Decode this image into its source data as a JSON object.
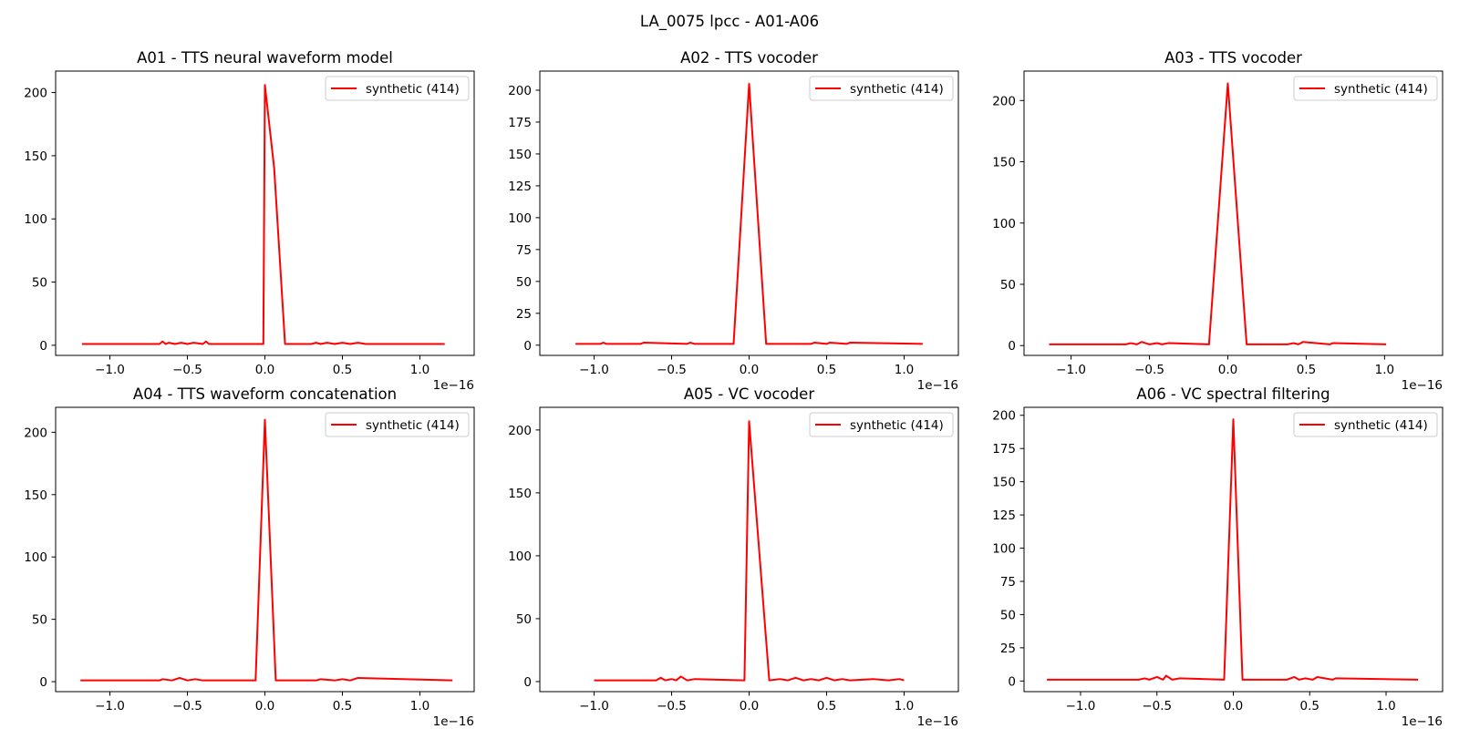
{
  "figure": {
    "title": "LA_0075 lpcc - A01-A06"
  },
  "style": {
    "series_color": "#ff0000",
    "axis_color": "#000000",
    "legend_border_color": "#cccccc"
  },
  "chart_data": [
    {
      "type": "line",
      "title": "A01 - TTS neural waveform model",
      "xlabel": "",
      "ylabel": "",
      "x_offset_label": "1e−16",
      "xlim": [
        -1.35,
        1.35
      ],
      "ylim": [
        -8,
        217
      ],
      "xticks": [
        -1.0,
        -0.5,
        0.0,
        0.5,
        1.0
      ],
      "xtick_labels": [
        "−1.0",
        "−0.5",
        "0.0",
        "0.5",
        "1.0"
      ],
      "yticks": [
        0,
        50,
        100,
        150,
        200
      ],
      "ytick_labels": [
        "0",
        "50",
        "100",
        "150",
        "200"
      ],
      "grid": false,
      "legend_position": "top-right",
      "series": [
        {
          "name": "synthetic (414)",
          "x": [
            -1.18,
            -0.68,
            -0.66,
            -0.64,
            -0.62,
            -0.58,
            -0.54,
            -0.5,
            -0.46,
            -0.4,
            -0.38,
            -0.36,
            -0.01,
            0.0,
            0.06,
            0.13,
            0.3,
            0.33,
            0.36,
            0.4,
            0.45,
            0.5,
            0.55,
            0.6,
            0.65,
            0.7,
            1.16
          ],
          "y": [
            1,
            1,
            3,
            1,
            2,
            1,
            2,
            1,
            2,
            1,
            3,
            1,
            1,
            206,
            140,
            1,
            1,
            2,
            1,
            2,
            1,
            2,
            1,
            2,
            1,
            1,
            1
          ]
        }
      ]
    },
    {
      "type": "line",
      "title": "A02 - TTS vocoder",
      "xlabel": "",
      "ylabel": "",
      "x_offset_label": "1e−16",
      "xlim": [
        -1.35,
        1.35
      ],
      "ylim": [
        -8,
        215
      ],
      "xticks": [
        -1.0,
        -0.5,
        0.0,
        0.5,
        1.0
      ],
      "xtick_labels": [
        "−1.0",
        "−0.5",
        "0.0",
        "0.5",
        "1.0"
      ],
      "yticks": [
        0,
        25,
        50,
        75,
        100,
        125,
        150,
        175,
        200
      ],
      "ytick_labels": [
        "0",
        "25",
        "50",
        "75",
        "100",
        "125",
        "150",
        "175",
        "200"
      ],
      "grid": false,
      "legend_position": "top-right",
      "series": [
        {
          "name": "synthetic (414)",
          "x": [
            -1.12,
            -0.96,
            -0.94,
            -0.92,
            -0.7,
            -0.68,
            -0.4,
            -0.38,
            -0.35,
            -0.1,
            0.0,
            0.11,
            0.4,
            0.42,
            0.5,
            0.52,
            0.63,
            0.65,
            1.12
          ],
          "y": [
            1,
            1,
            2,
            1,
            1,
            2,
            1,
            2,
            1,
            1,
            205,
            1,
            1,
            2,
            1,
            2,
            1,
            2,
            1
          ]
        }
      ]
    },
    {
      "type": "line",
      "title": "A03 - TTS vocoder",
      "xlabel": "",
      "ylabel": "",
      "x_offset_label": "1e−16",
      "xlim": [
        -1.3,
        1.37
      ],
      "ylim": [
        -8,
        224
      ],
      "xticks": [
        -1.0,
        -0.5,
        0.0,
        0.5,
        1.0
      ],
      "xtick_labels": [
        "−1.0",
        "−0.5",
        "0.0",
        "0.5",
        "1.0"
      ],
      "yticks": [
        0,
        50,
        100,
        150,
        200
      ],
      "ytick_labels": [
        "0",
        "50",
        "100",
        "150",
        "200"
      ],
      "grid": false,
      "legend_position": "top-right",
      "series": [
        {
          "name": "synthetic (414)",
          "x": [
            -1.14,
            -0.65,
            -0.62,
            -0.58,
            -0.55,
            -0.5,
            -0.45,
            -0.42,
            -0.38,
            -0.12,
            0.0,
            0.12,
            0.38,
            0.42,
            0.45,
            0.48,
            0.65,
            0.67,
            1.01
          ],
          "y": [
            1,
            1,
            2,
            1,
            3,
            1,
            2,
            1,
            2,
            1,
            214,
            1,
            1,
            2,
            1,
            3,
            1,
            2,
            1
          ]
        }
      ]
    },
    {
      "type": "line",
      "title": "A04 - TTS waveform concatenation",
      "xlabel": "",
      "ylabel": "",
      "x_offset_label": "1e−16",
      "xlim": [
        -1.35,
        1.35
      ],
      "ylim": [
        -8,
        220
      ],
      "xticks": [
        -1.0,
        -0.5,
        0.0,
        0.5,
        1.0
      ],
      "xtick_labels": [
        "−1.0",
        "−0.5",
        "0.0",
        "0.5",
        "1.0"
      ],
      "yticks": [
        0,
        50,
        100,
        150,
        200
      ],
      "ytick_labels": [
        "0",
        "50",
        "100",
        "150",
        "200"
      ],
      "grid": false,
      "legend_position": "top-right",
      "series": [
        {
          "name": "synthetic (414)",
          "x": [
            -1.19,
            -0.68,
            -0.66,
            -0.6,
            -0.55,
            -0.5,
            -0.45,
            -0.4,
            -0.06,
            0.0,
            0.07,
            0.33,
            0.36,
            0.45,
            0.5,
            0.55,
            0.6,
            1.21
          ],
          "y": [
            1,
            1,
            2,
            1,
            3,
            1,
            2,
            1,
            1,
            210,
            1,
            1,
            2,
            1,
            2,
            1,
            3,
            1
          ]
        }
      ]
    },
    {
      "type": "line",
      "title": "A05 - VC vocoder",
      "xlabel": "",
      "ylabel": "",
      "x_offset_label": "1e−16",
      "xlim": [
        -1.35,
        1.35
      ],
      "ylim": [
        -8,
        218
      ],
      "xticks": [
        -1.0,
        -0.5,
        0.0,
        0.5,
        1.0
      ],
      "xtick_labels": [
        "−1.0",
        "−0.5",
        "0.0",
        "0.5",
        "1.0"
      ],
      "yticks": [
        0,
        50,
        100,
        150,
        200
      ],
      "ytick_labels": [
        "0",
        "50",
        "100",
        "150",
        "200"
      ],
      "grid": false,
      "legend_position": "top-right",
      "series": [
        {
          "name": "synthetic (414)",
          "x": [
            -1.0,
            -0.6,
            -0.57,
            -0.54,
            -0.5,
            -0.47,
            -0.44,
            -0.4,
            -0.35,
            -0.03,
            0.0,
            0.13,
            0.2,
            0.25,
            0.3,
            0.35,
            0.4,
            0.45,
            0.5,
            0.55,
            0.6,
            0.65,
            0.8,
            0.9,
            0.97,
            1.0
          ],
          "y": [
            1,
            1,
            3,
            1,
            2,
            1,
            4,
            1,
            2,
            1,
            207,
            1,
            2,
            1,
            3,
            1,
            2,
            1,
            3,
            1,
            2,
            1,
            2,
            1,
            2,
            1
          ]
        }
      ]
    },
    {
      "type": "line",
      "title": "A06 - VC spectral filtering",
      "xlabel": "",
      "ylabel": "",
      "x_offset_label": "1e−16",
      "xlim": [
        -1.37,
        1.37
      ],
      "ylim": [
        -8,
        206
      ],
      "xticks": [
        -1.0,
        -0.5,
        0.0,
        0.5,
        1.0
      ],
      "xtick_labels": [
        "−1.0",
        "−0.5",
        "0.0",
        "0.5",
        "1.0"
      ],
      "yticks": [
        0,
        25,
        50,
        75,
        100,
        125,
        150,
        175,
        200
      ],
      "ytick_labels": [
        "0",
        "25",
        "50",
        "75",
        "100",
        "125",
        "150",
        "175",
        "200"
      ],
      "grid": false,
      "legend_position": "top-right",
      "series": [
        {
          "name": "synthetic (414)",
          "x": [
            -1.22,
            -0.62,
            -0.58,
            -0.55,
            -0.5,
            -0.46,
            -0.44,
            -0.4,
            -0.35,
            -0.06,
            0.0,
            0.06,
            0.35,
            0.4,
            0.43,
            0.47,
            0.52,
            0.55,
            0.65,
            0.67,
            1.21
          ],
          "y": [
            1,
            1,
            2,
            1,
            3,
            1,
            4,
            1,
            2,
            1,
            197,
            1,
            1,
            3,
            1,
            2,
            1,
            3,
            1,
            2,
            1
          ]
        }
      ]
    }
  ]
}
